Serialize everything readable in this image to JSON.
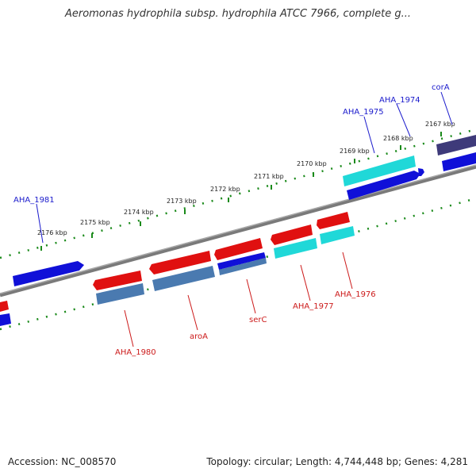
{
  "title": "Aeromonas hydrophila subsp. hydrophila ATCC 7966, complete g...",
  "footer": {
    "accession": "Accession: NC_008570",
    "topology": "Topology: circular; Length: 4,744,448 bp; Genes: 4,281"
  },
  "ticks": [
    "2167 kbp",
    "2168 kbp",
    "2169 kbp",
    "2170 kbp",
    "2171 kbp",
    "2172 kbp",
    "2173 kbp",
    "2174 kbp",
    "2175 kbp",
    "2176 kbp"
  ],
  "genes": [
    {
      "name": "corA",
      "strand": "+",
      "color": "#3e3a7a"
    },
    {
      "name": "AHA_1974",
      "strand": "+",
      "color": "#1010d8"
    },
    {
      "name": "AHA_1975",
      "strand": "+",
      "color": "#20d8d8"
    },
    {
      "name": "AHA_1981",
      "strand": "+",
      "color": "#1010d8"
    },
    {
      "name": "AHA_1976",
      "strand": "-",
      "color": "#e01010"
    },
    {
      "name": "AHA_1977",
      "strand": "-",
      "color": "#e01010"
    },
    {
      "name": "serC",
      "strand": "-",
      "color": "#e01010"
    },
    {
      "name": "aroA",
      "strand": "-",
      "color": "#e01010"
    },
    {
      "name": "AHA_1980",
      "strand": "-",
      "color": "#e01010"
    }
  ],
  "colors": {
    "backbone": "#808080",
    "tick_dots": "#1a8a1a",
    "forward_blue": "#1010d8",
    "reverse_red": "#e01010",
    "cyan": "#20d8d8",
    "steel": "#4a7ab0",
    "dark_purple": "#3e3a7a"
  }
}
